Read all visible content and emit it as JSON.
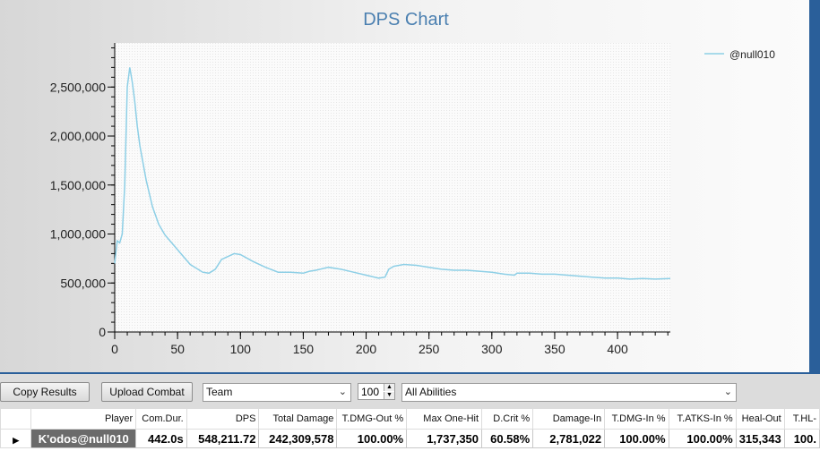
{
  "chart_data": {
    "type": "line",
    "title": "DPS Chart",
    "xlabel": "",
    "ylabel": "",
    "xlim": [
      0,
      442
    ],
    "ylim": [
      0,
      2950000
    ],
    "xticks": [
      "0",
      "50",
      "100",
      "150",
      "200",
      "250",
      "300",
      "350",
      "400"
    ],
    "yticks": [
      "0",
      "500,000",
      "1,000,000",
      "1,500,000",
      "2,000,000",
      "2,500,000"
    ],
    "grid": false,
    "legend_position": "top-right",
    "series": [
      {
        "name": "@null010",
        "color": "#8dcfe6",
        "x": [
          0,
          2,
          4,
          6,
          8,
          10,
          12,
          14,
          16,
          18,
          20,
          25,
          30,
          35,
          40,
          50,
          60,
          70,
          75,
          80,
          85,
          90,
          95,
          100,
          110,
          120,
          130,
          140,
          150,
          155,
          160,
          170,
          180,
          190,
          200,
          210,
          215,
          218,
          222,
          230,
          240,
          250,
          260,
          270,
          280,
          290,
          300,
          310,
          318,
          320,
          330,
          340,
          350,
          360,
          370,
          380,
          390,
          400,
          410,
          420,
          430,
          442
        ],
        "y": [
          700000,
          930000,
          910000,
          1000000,
          1500000,
          2500000,
          2700000,
          2550000,
          2350000,
          2100000,
          1900000,
          1550000,
          1280000,
          1100000,
          990000,
          840000,
          690000,
          610000,
          600000,
          640000,
          740000,
          770000,
          800000,
          790000,
          720000,
          660000,
          610000,
          610000,
          600000,
          620000,
          630000,
          660000,
          640000,
          610000,
          580000,
          550000,
          560000,
          640000,
          670000,
          690000,
          680000,
          660000,
          640000,
          630000,
          630000,
          620000,
          610000,
          590000,
          580000,
          600000,
          600000,
          590000,
          590000,
          580000,
          570000,
          560000,
          550000,
          550000,
          540000,
          545000,
          540000,
          545000
        ]
      }
    ]
  },
  "toolbar": {
    "copy_label": "Copy Results",
    "upload_label": "Upload Combat",
    "team_select": "Team",
    "count_value": "100",
    "abilities_select": "All Abilities"
  },
  "table": {
    "columns": [
      "Player",
      "Com.Dur.",
      "DPS",
      "Total Damage",
      "T.DMG-Out %",
      "Max One-Hit",
      "D.Crit %",
      "Damage-In",
      "T.DMG-In %",
      "T.ATKS-In %",
      "Heal-Out",
      "T.HL-"
    ],
    "rows": [
      [
        "K'odos@null010",
        "442.0s",
        "548,211.72",
        "242,309,578",
        "100.00%",
        "1,737,350",
        "60.58%",
        "2,781,022",
        "100.00%",
        "100.00%",
        "315,343",
        "100."
      ]
    ]
  }
}
